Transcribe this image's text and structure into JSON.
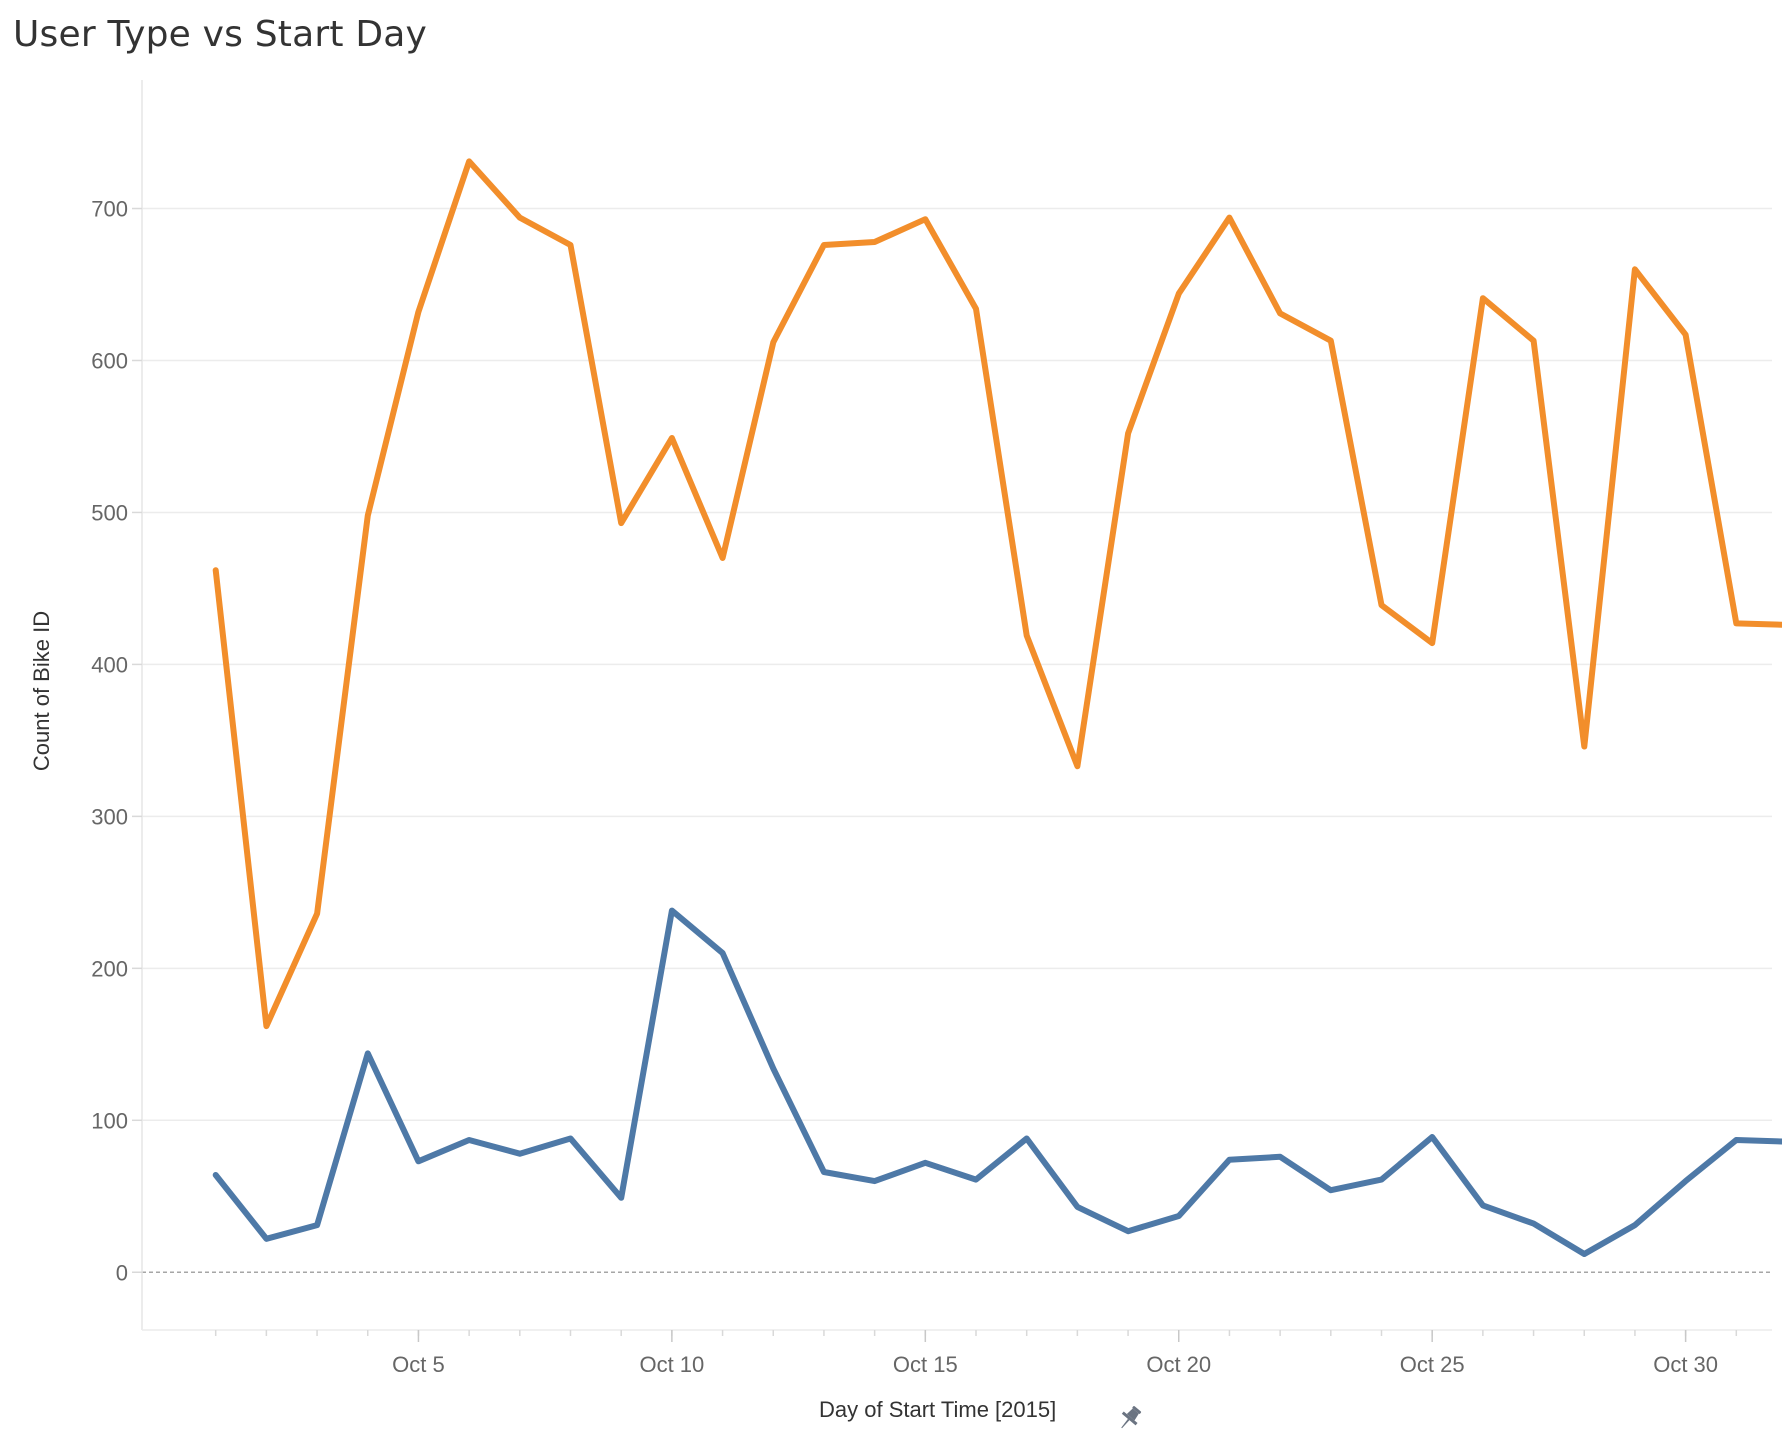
{
  "chart_data": {
    "type": "line",
    "title": "User Type vs Start Day",
    "xlabel": "Day of Start Time [2015]",
    "ylabel": "Count of Bike ID",
    "x": [
      "2015-10-01",
      "2015-10-02",
      "2015-10-03",
      "2015-10-04",
      "2015-10-05",
      "2015-10-06",
      "2015-10-07",
      "2015-10-08",
      "2015-10-09",
      "2015-10-10",
      "2015-10-11",
      "2015-10-12",
      "2015-10-13",
      "2015-10-14",
      "2015-10-15",
      "2015-10-16",
      "2015-10-17",
      "2015-10-18",
      "2015-10-19",
      "2015-10-20",
      "2015-10-21",
      "2015-10-22",
      "2015-10-23",
      "2015-10-24",
      "2015-10-25",
      "2015-10-26",
      "2015-10-27",
      "2015-10-28",
      "2015-10-29",
      "2015-10-30",
      "2015-10-31",
      "2015-11-01"
    ],
    "xlim": [
      "2015-09-30",
      "2015-11-01"
    ],
    "x_ticks": [
      "2015-10-05",
      "2015-10-10",
      "2015-10-15",
      "2015-10-20",
      "2015-10-25",
      "2015-10-30"
    ],
    "x_tick_labels": [
      "Oct 5",
      "Oct 10",
      "Oct 15",
      "Oct 20",
      "Oct 25",
      "Oct 30"
    ],
    "ylim": [
      -38,
      778
    ],
    "y_ticks": [
      0,
      100,
      200,
      300,
      400,
      500,
      600,
      700
    ],
    "grid": true,
    "zero_line": "dashed",
    "legend": "none",
    "series": [
      {
        "color": "#F28E2B",
        "values": [
          462,
          162,
          236,
          498,
          632,
          731,
          694,
          676,
          493,
          549,
          470,
          612,
          676,
          678,
          693,
          634,
          419,
          333,
          552,
          644,
          694,
          631,
          613,
          439,
          414,
          641,
          613,
          346,
          660,
          617,
          427,
          426
        ]
      },
      {
        "color": "#4E79A7",
        "values": [
          64,
          22,
          31,
          144,
          73,
          87,
          78,
          88,
          49,
          238,
          210,
          134,
          66,
          60,
          72,
          61,
          88,
          43,
          27,
          37,
          74,
          76,
          54,
          61,
          89,
          44,
          32,
          12,
          31,
          60,
          87,
          86
        ]
      }
    ]
  },
  "pin_icon": "pin-icon"
}
